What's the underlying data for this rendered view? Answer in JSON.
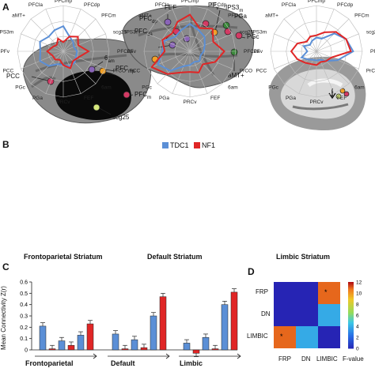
{
  "panels": {
    "a": "A",
    "b": "B",
    "c": "C",
    "d": "D"
  },
  "panel_a": {
    "labels": [
      "FEF",
      "PF",
      "IPS3",
      "PGa",
      "PFC",
      "PFC",
      "PGc",
      "aMT+",
      "6",
      "PFC",
      "PCC",
      "PFC",
      "scg25"
    ],
    "subscripts": [
      "v",
      "m",
      "dp",
      "da",
      "am",
      "mp",
      "m"
    ],
    "label_full": {
      "fef": "FEF",
      "pf": "PF",
      "pf_sub": "v",
      "ips3": "IPS3",
      "ips3_sub": "m",
      "pga": "PGa",
      "pfcdp": "PFC",
      "pfcdp_sub": "dp",
      "pfcda": "PFC",
      "pfcda_sub": "da",
      "pgc": "PGc",
      "amt": "aMT+",
      "six": "6",
      "six_sub": "am",
      "pfcmp": "PFC",
      "pfcmp_sub": "mp",
      "pcc": "PCC",
      "pfcm": "PFC",
      "pfcm_sub": "m",
      "scg25": "scg25"
    }
  },
  "panel_b": {
    "legend": [
      {
        "name": "TDC1",
        "color": "#5b8fd6"
      },
      {
        "name": "NF1",
        "color": "#e02626"
      }
    ],
    "spoke_labels": [
      "PFCmp",
      "PFCdp",
      "PFCm",
      "scg25",
      "PFCda",
      "PrCO",
      "6am",
      "FEF",
      "PRCv",
      "PGa",
      "PGc",
      "PCC",
      "PFv",
      "IPS3m",
      "aMT+",
      "PFCla"
    ],
    "titles": [
      "Frontoparietal Striatum",
      "Default Striatum",
      "Limbic Striatum"
    ]
  },
  "chart_data": [
    {
      "type": "bar",
      "title": "",
      "ylabel": "Mean Connectivity Z(r)",
      "ylim": [
        0,
        0.6
      ],
      "yticks": [
        "0",
        "0.1",
        "0.2",
        "0.3",
        "0.4",
        "0.5",
        "0.6"
      ],
      "groups": [
        "Frontoparietal",
        "Default",
        "Limbic"
      ],
      "series": [
        {
          "name": "",
          "color": "#5b8fd6",
          "values": [
            0.21,
            0.14,
            0.06
          ]
        },
        {
          "name": "",
          "color": "#e02626",
          "values": [
            0.01,
            0.01,
            -0.03
          ]
        },
        {
          "name": "",
          "color": "#5b8fd6",
          "values": [
            0.08,
            0.09,
            0.11
          ]
        },
        {
          "name": "",
          "color": "#e02626",
          "values": [
            0.04,
            0.02,
            0.01
          ]
        },
        {
          "name": "",
          "color": "#5b8fd6",
          "values": [
            0.13,
            0.3,
            0.4
          ]
        },
        {
          "name": "",
          "color": "#e02626",
          "values": [
            0.23,
            0.47,
            0.51
          ]
        }
      ]
    },
    {
      "type": "heatmap",
      "rows": [
        "FRP",
        "DN",
        "LIMBIC"
      ],
      "cols": [
        "FRP",
        "DN",
        "LIMBIC"
      ],
      "values": [
        [
          0,
          0,
          11
        ],
        [
          0,
          0,
          4
        ],
        [
          11,
          4,
          0
        ]
      ],
      "significant": [
        [
          false,
          false,
          true
        ],
        [
          false,
          false,
          false
        ],
        [
          true,
          false,
          false
        ]
      ],
      "colorbar_label": "F-value",
      "colorbar_ticks": [
        "0",
        "2",
        "4",
        "6",
        "8",
        "10",
        "12"
      ],
      "range": [
        0,
        12
      ]
    }
  ]
}
